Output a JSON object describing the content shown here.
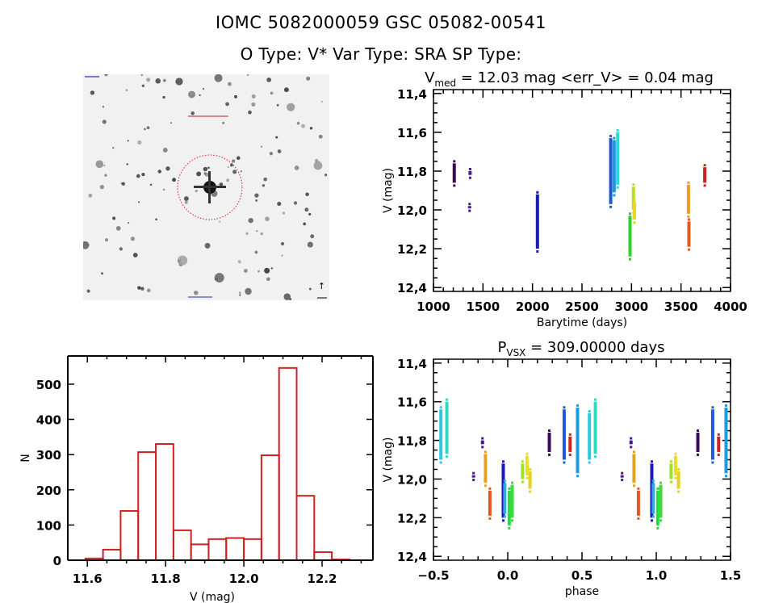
{
  "header": {
    "line1": "IOMC 5082000059    GSC 05082-00541",
    "line2": "O Type: V*   Var Type: SRA   SP Type:"
  },
  "image_panel": {
    "description": "DSS finder chart thumbnail, inverted grayscale star field with red dotted circle around target",
    "target_marker_color": "#d02020"
  },
  "chart_data": [
    {
      "id": "light-curve",
      "type": "scatter",
      "title_main": "V",
      "title_sub": "med",
      "title_rest": " = 12.03 mag <err_V> = 0.04 mag",
      "xlabel": "Barytime (days)",
      "ylabel": "V (mag)",
      "xlim": [
        1000,
        4000
      ],
      "ylim": [
        12.42,
        11.38
      ],
      "y_inverted": true,
      "xticks": [
        1000,
        1500,
        2000,
        2500,
        3000,
        3500,
        4000
      ],
      "yticks": [
        "11.4",
        "11.6",
        "11.8",
        "12.0",
        "12.2",
        "12.4"
      ],
      "grid": false,
      "clusters": [
        {
          "x": 1210,
          "ymin": 11.76,
          "ymax": 11.86,
          "color": "#3a0a5a"
        },
        {
          "x": 1370,
          "ymin": 11.8,
          "ymax": 11.82,
          "color": "#4a1a8a"
        },
        {
          "x": 1365,
          "ymin": 11.98,
          "ymax": 11.99,
          "color": "#4a1a8a"
        },
        {
          "x": 2050,
          "ymin": 11.92,
          "ymax": 12.2,
          "color": "#1a1ab8"
        },
        {
          "x": 2790,
          "ymin": 11.63,
          "ymax": 11.97,
          "color": "#1a5ad8"
        },
        {
          "x": 2825,
          "ymin": 11.64,
          "ymax": 11.91,
          "color": "#1a9ae0"
        },
        {
          "x": 2860,
          "ymin": 11.6,
          "ymax": 11.87,
          "color": "#30d8d0"
        },
        {
          "x": 2985,
          "ymin": 12.03,
          "ymax": 12.24,
          "color": "#30d030"
        },
        {
          "x": 3020,
          "ymin": 11.88,
          "ymax": 12.0,
          "color": "#b8e020"
        },
        {
          "x": 3030,
          "ymin": 11.96,
          "ymax": 12.05,
          "color": "#e8d820"
        },
        {
          "x": 3575,
          "ymin": 11.87,
          "ymax": 12.02,
          "color": "#e8a020"
        },
        {
          "x": 3580,
          "ymin": 12.06,
          "ymax": 12.19,
          "color": "#e05a20"
        },
        {
          "x": 3740,
          "ymin": 11.78,
          "ymax": 11.86,
          "color": "#d02020"
        }
      ]
    },
    {
      "id": "histogram",
      "type": "bar",
      "xlabel": "V (mag)",
      "ylabel": "N",
      "xlim": [
        11.55,
        12.33
      ],
      "ylim": [
        0,
        580
      ],
      "xticks": [
        "11.6",
        "11.8",
        "12.0",
        "12.2"
      ],
      "yticks": [
        0,
        100,
        200,
        300,
        400,
        500
      ],
      "bin_edges": [
        11.595,
        11.64,
        11.685,
        11.73,
        11.775,
        11.82,
        11.865,
        11.91,
        11.955,
        12.0,
        12.045,
        12.09,
        12.135,
        12.18,
        12.225,
        12.27
      ],
      "values": [
        5,
        30,
        140,
        307,
        330,
        85,
        45,
        60,
        63,
        60,
        298,
        546,
        183,
        23,
        2
      ],
      "bar_color": "#d02020",
      "grid": false
    },
    {
      "id": "phase-plot",
      "type": "scatter",
      "title_main": "P",
      "title_sub": "VSX",
      "title_rest": " = 309.00000 days",
      "xlabel": "phase",
      "ylabel": "V (mag)",
      "xlim": [
        -0.5,
        1.5
      ],
      "ylim": [
        12.42,
        11.38
      ],
      "y_inverted": true,
      "xticks": [
        "-0.5",
        "0.0",
        "0.5",
        "1.0",
        "1.5"
      ],
      "yticks": [
        "11.4",
        "11.6",
        "11.8",
        "12.0",
        "12.2",
        "12.4"
      ],
      "period_days": 309.0,
      "grid": false,
      "clusters": [
        {
          "x": -0.45,
          "ymin": 11.64,
          "ymax": 11.9,
          "color": "#30c8e0"
        },
        {
          "x": -0.41,
          "ymin": 11.6,
          "ymax": 11.87,
          "color": "#30d8c0"
        },
        {
          "x": -0.23,
          "ymin": 11.98,
          "ymax": 11.99,
          "color": "#4a1a8a"
        },
        {
          "x": -0.17,
          "ymin": 11.8,
          "ymax": 11.82,
          "color": "#4a1a8a"
        },
        {
          "x": -0.15,
          "ymin": 11.87,
          "ymax": 12.02,
          "color": "#e8a020"
        },
        {
          "x": -0.12,
          "ymin": 12.06,
          "ymax": 12.19,
          "color": "#e05a20"
        },
        {
          "x": -0.03,
          "ymin": 11.92,
          "ymax": 12.2,
          "color": "#1a1ab8"
        },
        {
          "x": -0.02,
          "ymin": 12.02,
          "ymax": 12.18,
          "color": "#30a8d8"
        },
        {
          "x": 0.01,
          "ymin": 12.06,
          "ymax": 12.24,
          "color": "#20e040"
        },
        {
          "x": 0.03,
          "ymin": 12.03,
          "ymax": 12.2,
          "color": "#40d840"
        },
        {
          "x": 0.1,
          "ymin": 11.92,
          "ymax": 12.0,
          "color": "#a0e030"
        },
        {
          "x": 0.13,
          "ymin": 11.88,
          "ymax": 11.98,
          "color": "#e8e020"
        },
        {
          "x": 0.15,
          "ymin": 11.96,
          "ymax": 12.05,
          "color": "#e8d020"
        },
        {
          "x": 0.28,
          "ymin": 11.76,
          "ymax": 11.86,
          "color": "#3a0a5a"
        },
        {
          "x": 0.38,
          "ymin": 11.64,
          "ymax": 11.9,
          "color": "#1a5ad8"
        },
        {
          "x": 0.42,
          "ymin": 11.78,
          "ymax": 11.86,
          "color": "#d02020"
        },
        {
          "x": 0.47,
          "ymin": 11.63,
          "ymax": 11.97,
          "color": "#1a9ae0"
        },
        {
          "x": 0.55,
          "ymin": 11.66,
          "ymax": 11.9,
          "color": "#30c8e0"
        },
        {
          "x": 0.59,
          "ymin": 11.6,
          "ymax": 11.87,
          "color": "#30d8c0"
        },
        {
          "x": 0.77,
          "ymin": 11.98,
          "ymax": 11.99,
          "color": "#4a1a8a"
        },
        {
          "x": 0.83,
          "ymin": 11.8,
          "ymax": 11.82,
          "color": "#4a1a8a"
        },
        {
          "x": 0.85,
          "ymin": 11.87,
          "ymax": 12.02,
          "color": "#e8a020"
        },
        {
          "x": 0.88,
          "ymin": 12.06,
          "ymax": 12.19,
          "color": "#e05a20"
        },
        {
          "x": 0.97,
          "ymin": 11.92,
          "ymax": 12.2,
          "color": "#1a1ab8"
        },
        {
          "x": 0.98,
          "ymin": 12.02,
          "ymax": 12.18,
          "color": "#30a8d8"
        },
        {
          "x": 1.01,
          "ymin": 12.06,
          "ymax": 12.24,
          "color": "#20e040"
        },
        {
          "x": 1.03,
          "ymin": 12.03,
          "ymax": 12.2,
          "color": "#40d840"
        },
        {
          "x": 1.1,
          "ymin": 11.92,
          "ymax": 12.0,
          "color": "#a0e030"
        },
        {
          "x": 1.13,
          "ymin": 11.88,
          "ymax": 11.98,
          "color": "#e8e020"
        },
        {
          "x": 1.15,
          "ymin": 11.96,
          "ymax": 12.05,
          "color": "#e8d020"
        },
        {
          "x": 1.28,
          "ymin": 11.76,
          "ymax": 11.86,
          "color": "#3a0a5a"
        },
        {
          "x": 1.38,
          "ymin": 11.64,
          "ymax": 11.9,
          "color": "#1a5ad8"
        },
        {
          "x": 1.42,
          "ymin": 11.78,
          "ymax": 11.86,
          "color": "#d02020"
        },
        {
          "x": 1.47,
          "ymin": 11.63,
          "ymax": 11.97,
          "color": "#1a9ae0"
        }
      ]
    }
  ]
}
